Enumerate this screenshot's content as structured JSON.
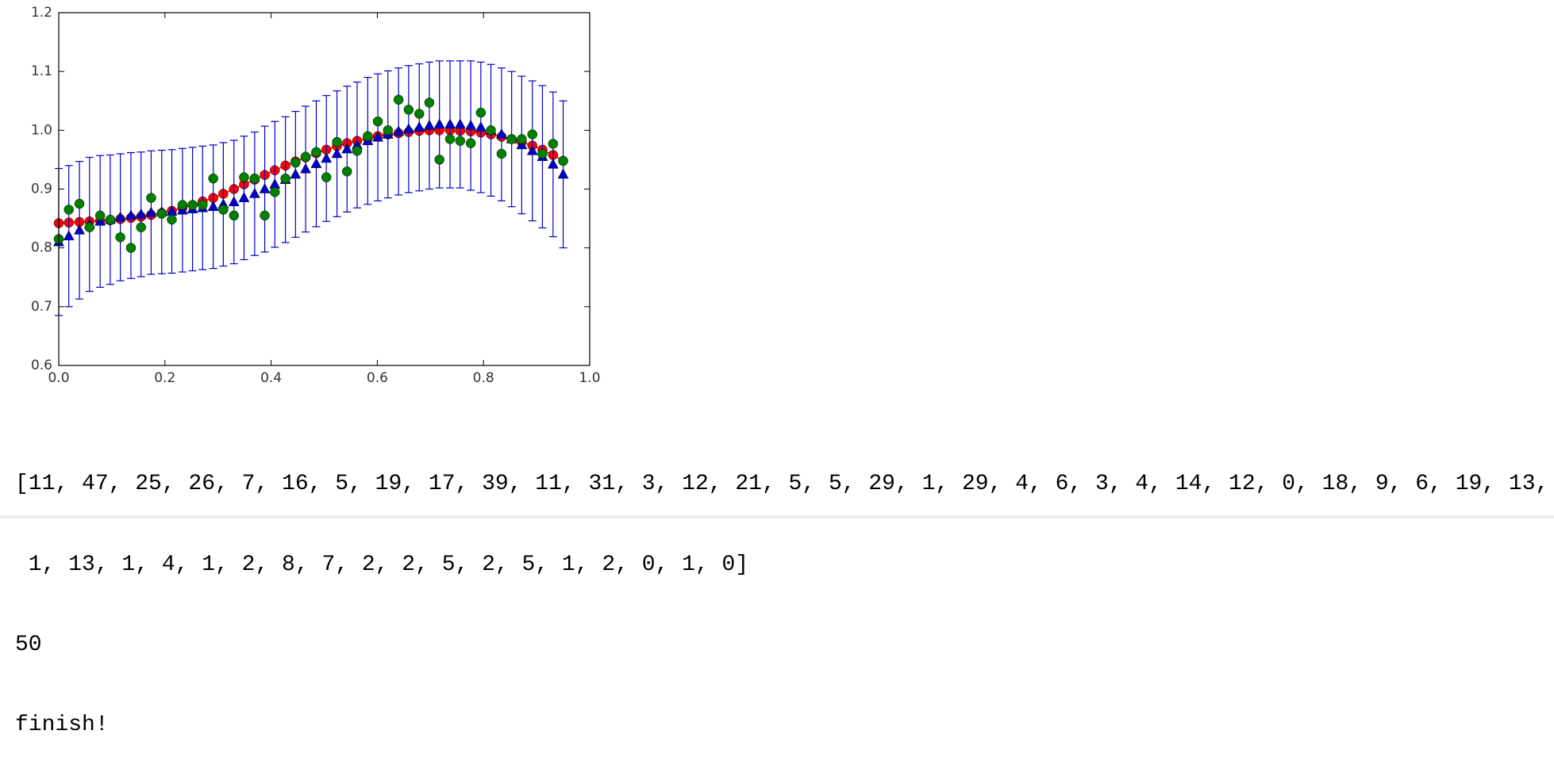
{
  "chart_data": {
    "type": "errorbar-scatter",
    "x": [
      0,
      0.019,
      0.039,
      0.058,
      0.078,
      0.097,
      0.116,
      0.136,
      0.155,
      0.174,
      0.194,
      0.213,
      0.233,
      0.252,
      0.271,
      0.291,
      0.31,
      0.33,
      0.349,
      0.369,
      0.388,
      0.407,
      0.427,
      0.446,
      0.465,
      0.485,
      0.504,
      0.524,
      0.543,
      0.562,
      0.582,
      0.601,
      0.62,
      0.64,
      0.659,
      0.679,
      0.698,
      0.717,
      0.737,
      0.756,
      0.776,
      0.795,
      0.814,
      0.834,
      0.853,
      0.872,
      0.892,
      0.911,
      0.931,
      0.95
    ],
    "series": [
      {
        "color": "#ff0000",
        "marker": "circle",
        "line": true,
        "values": [
          0.842,
          0.843,
          0.844,
          0.845,
          0.846,
          0.847,
          0.849,
          0.851,
          0.853,
          0.856,
          0.859,
          0.863,
          0.868,
          0.873,
          0.879,
          0.885,
          0.892,
          0.9,
          0.908,
          0.916,
          0.924,
          0.932,
          0.94,
          0.947,
          0.954,
          0.961,
          0.967,
          0.973,
          0.978,
          0.982,
          0.986,
          0.99,
          0.993,
          0.995,
          0.997,
          0.999,
          1.0,
          1.0,
          1.0,
          0.999,
          0.998,
          0.996,
          0.993,
          0.989,
          0.985,
          0.98,
          0.974,
          0.967,
          0.958,
          0.948
        ]
      },
      {
        "color": "#0000cc",
        "marker": "triangle",
        "line": false,
        "values": [
          0.81,
          0.82,
          0.83,
          0.84,
          0.845,
          0.848,
          0.852,
          0.855,
          0.857,
          0.86,
          0.861,
          0.862,
          0.864,
          0.866,
          0.868,
          0.87,
          0.874,
          0.878,
          0.885,
          0.892,
          0.9,
          0.908,
          0.916,
          0.925,
          0.934,
          0.943,
          0.952,
          0.96,
          0.968,
          0.975,
          0.982,
          0.988,
          0.993,
          0.998,
          1.002,
          1.005,
          1.008,
          1.01,
          1.01,
          1.01,
          1.008,
          1.005,
          1.0,
          0.993,
          0.985,
          0.975,
          0.965,
          0.955,
          0.942,
          0.925
        ],
        "errors": [
          0.125,
          0.12,
          0.117,
          0.114,
          0.112,
          0.11,
          0.108,
          0.107,
          0.106,
          0.105,
          0.105,
          0.105,
          0.105,
          0.105,
          0.105,
          0.105,
          0.105,
          0.105,
          0.105,
          0.105,
          0.107,
          0.107,
          0.107,
          0.107,
          0.107,
          0.107,
          0.107,
          0.107,
          0.107,
          0.107,
          0.108,
          0.108,
          0.108,
          0.108,
          0.108,
          0.108,
          0.108,
          0.108,
          0.108,
          0.108,
          0.11,
          0.111,
          0.112,
          0.113,
          0.115,
          0.117,
          0.119,
          0.121,
          0.123,
          0.125
        ]
      },
      {
        "color": "#007f00",
        "marker": "circle",
        "line": false,
        "values": [
          0.815,
          0.865,
          0.875,
          0.835,
          0.855,
          0.848,
          0.818,
          0.8,
          0.835,
          0.885,
          0.858,
          0.848,
          0.873,
          0.873,
          0.873,
          0.918,
          0.865,
          0.855,
          0.92,
          0.918,
          0.855,
          0.895,
          0.918,
          0.945,
          0.955,
          0.963,
          0.92,
          0.98,
          0.93,
          0.965,
          0.99,
          1.015,
          1.0,
          1.052,
          1.035,
          1.028,
          1.047,
          0.95,
          0.985,
          0.982,
          0.978,
          1.03,
          1.0,
          0.96,
          0.985,
          0.985,
          0.993,
          0.96,
          0.977,
          0.948
        ]
      }
    ],
    "xlim": [
      0,
      1
    ],
    "xticks": [
      {
        "value": 0,
        "label": "0.0"
      },
      0.2,
      0.4,
      0.6,
      0.8,
      {
        "value": 1,
        "label": "1.0"
      }
    ],
    "ylim": [
      0.6,
      1.2
    ],
    "yticks": [
      0.6,
      0.7,
      0.8,
      0.9,
      {
        "value": 1,
        "label": "1.0"
      },
      1.1,
      1.2
    ]
  },
  "output": {
    "lines": [
      "[11, 47, 25, 26, 7, 16, 5, 19, 17, 39, 11, 31, 3, 12, 21, 5, 5, 29, 1, 29, 4, 6, 3, 4, 14, 12, 0, 18, 9, 6, 19, 13,",
      " 1, 13, 1, 4, 1, 2, 8, 7, 2, 2, 5, 2, 5, 1, 2, 0, 1, 0]",
      "50",
      "finish!"
    ]
  }
}
